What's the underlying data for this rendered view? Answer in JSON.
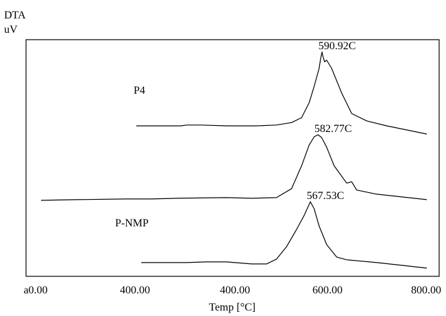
{
  "chart_data": {
    "type": "line",
    "y_axis_title_line1": "DTA",
    "y_axis_title_line2": "uV",
    "xlabel": "Temp [°C]",
    "x_tick_labels": [
      "a0.00",
      "400.00",
      "400.00",
      "600.00",
      "800.00"
    ],
    "xlim": [
      0,
      800
    ],
    "grid": false,
    "legend": "none",
    "series": [
      {
        "name": "P4",
        "peak_label": "590.92C",
        "x": [
          220,
          280,
          310,
          320,
          350,
          400,
          460,
          500,
          530,
          550,
          565,
          575,
          585,
          588,
          590.9,
          592,
          596,
          600,
          610,
          630,
          650,
          680,
          720,
          760,
          800
        ],
        "y": [
          0.1,
          0.1,
          0.1,
          0.11,
          0.11,
          0.1,
          0.1,
          0.11,
          0.14,
          0.2,
          0.38,
          0.58,
          0.8,
          0.92,
          1.0,
          0.96,
          0.88,
          0.9,
          0.8,
          0.5,
          0.25,
          0.16,
          0.1,
          0.05,
          0.0
        ]
      },
      {
        "name": "",
        "peak_label": "582.77C",
        "x": [
          30,
          100,
          200,
          250,
          300,
          400,
          450,
          500,
          530,
          550,
          565,
          575,
          582.8,
          590,
          600,
          615,
          640,
          650,
          660,
          700,
          750,
          800
        ],
        "y": [
          0.05,
          0.06,
          0.07,
          0.07,
          0.08,
          0.09,
          0.08,
          0.09,
          0.22,
          0.55,
          0.85,
          0.97,
          1.0,
          0.96,
          0.82,
          0.55,
          0.3,
          0.32,
          0.2,
          0.14,
          0.1,
          0.06
        ]
      },
      {
        "name": "P-NMP",
        "peak_label": "567.53C",
        "x": [
          230,
          280,
          320,
          360,
          400,
          450,
          480,
          500,
          520,
          540,
          555,
          567.5,
          575,
          585,
          600,
          620,
          640,
          700,
          750,
          800
        ],
        "y": [
          0.12,
          0.12,
          0.12,
          0.13,
          0.13,
          0.1,
          0.1,
          0.17,
          0.35,
          0.6,
          0.8,
          1.0,
          0.9,
          0.65,
          0.38,
          0.2,
          0.16,
          0.12,
          0.08,
          0.04
        ]
      }
    ]
  }
}
